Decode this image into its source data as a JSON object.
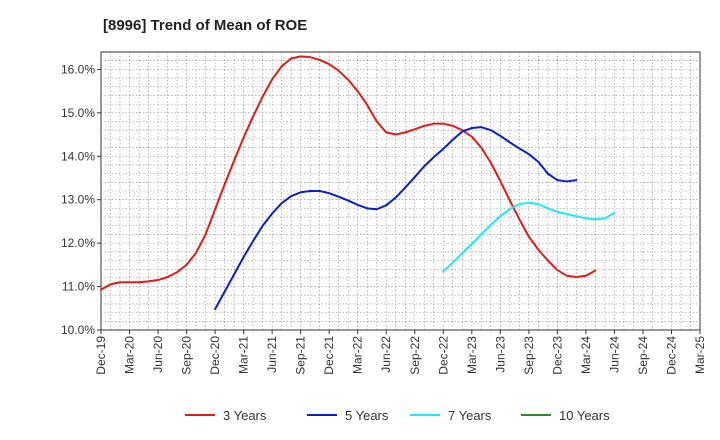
{
  "chart_data": {
    "type": "line",
    "title": "[8996]  Trend of Mean of ROE",
    "xlabel": "",
    "ylabel": "",
    "x_tick_labels": [
      "Dec-19",
      "Mar-20",
      "Jun-20",
      "Sep-20",
      "Dec-20",
      "Mar-21",
      "Jun-21",
      "Sep-21",
      "Dec-21",
      "Mar-22",
      "Jun-22",
      "Sep-22",
      "Dec-22",
      "Mar-23",
      "Jun-23",
      "Sep-23",
      "Dec-23",
      "Mar-24",
      "Jun-24",
      "Sep-24",
      "Dec-24",
      "Mar-25"
    ],
    "y_tick_labels": [
      "10.0%",
      "11.0%",
      "12.0%",
      "13.0%",
      "14.0%",
      "15.0%",
      "16.0%"
    ],
    "ylim": [
      10.0,
      16.4
    ],
    "grid": true,
    "legend": "bottom",
    "series": [
      {
        "name": "3 Years",
        "color": "#e31a1c",
        "start_index": 0,
        "values": [
          10.93,
          11.05,
          11.1,
          11.1,
          11.1,
          11.12,
          11.15,
          11.22,
          11.33,
          11.5,
          11.78,
          12.2,
          12.78,
          13.35,
          13.9,
          14.43,
          14.92,
          15.37,
          15.77,
          16.07,
          16.25,
          16.3,
          16.28,
          16.22,
          16.12,
          15.97,
          15.76,
          15.5,
          15.18,
          14.8,
          14.55,
          14.5,
          14.55,
          14.62,
          14.7,
          14.75,
          14.75,
          14.7,
          14.6,
          14.45,
          14.2,
          13.85,
          13.43,
          12.98,
          12.55,
          12.15,
          11.85,
          11.6,
          11.38,
          11.25,
          11.22,
          11.25,
          11.37
        ]
      },
      {
        "name": "5 Years",
        "color": "#0a1ecc",
        "start_index": 12,
        "values": [
          10.48,
          10.88,
          11.28,
          11.68,
          12.05,
          12.4,
          12.68,
          12.92,
          13.08,
          13.17,
          13.2,
          13.2,
          13.15,
          13.07,
          12.98,
          12.88,
          12.8,
          12.78,
          12.87,
          13.05,
          13.28,
          13.52,
          13.77,
          13.98,
          14.17,
          14.38,
          14.57,
          14.65,
          14.67,
          14.6,
          14.47,
          14.32,
          14.18,
          14.05,
          13.87,
          13.6,
          13.45,
          13.42,
          13.45
        ]
      },
      {
        "name": "7 Years",
        "color": "#1ee8f0",
        "start_index": 36,
        "values": [
          11.35,
          11.55,
          11.77,
          11.98,
          12.2,
          12.42,
          12.62,
          12.78,
          12.9,
          12.93,
          12.9,
          12.8,
          12.72,
          12.67,
          12.62,
          12.57,
          12.55,
          12.57,
          12.7
        ]
      },
      {
        "name": "10 Years",
        "color": "#2a8a2a",
        "start_index": 0,
        "values": []
      }
    ]
  }
}
